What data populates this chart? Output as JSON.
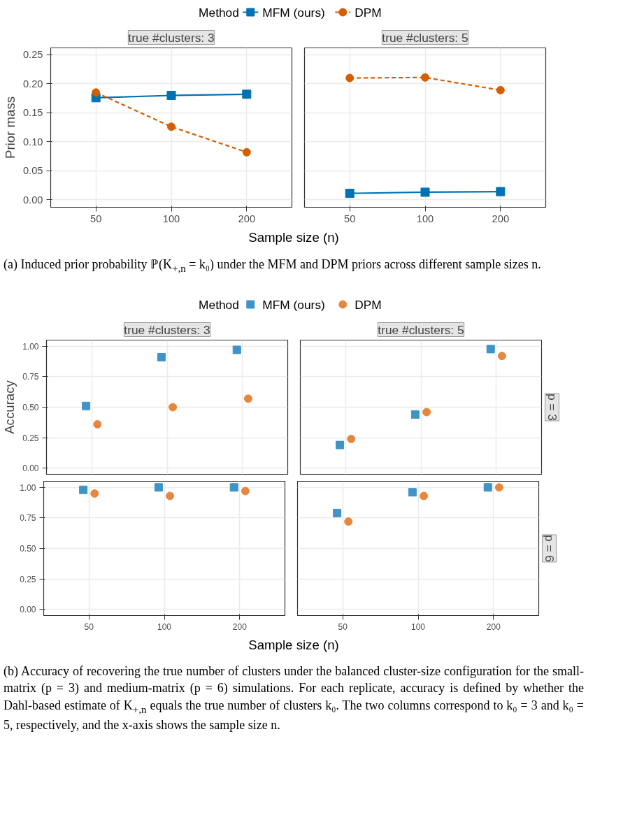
{
  "chart_data": [
    {
      "type": "line",
      "title": "true #clusters: 3",
      "ylabel": "Prior mass",
      "xlabel": "Sample size (n)",
      "legend": "top",
      "legend_title": "Method",
      "categories": [
        "50",
        "100",
        "200"
      ],
      "ylim": [
        -0.013,
        0.262
      ],
      "yticks": [
        {
          "value": 0,
          "label": "0.00"
        },
        {
          "value": 0.05,
          "label": "0.05"
        },
        {
          "value": 0.1,
          "label": "0.10"
        },
        {
          "value": 0.15,
          "label": "0.15"
        },
        {
          "value": 0.2,
          "label": "0.20"
        },
        {
          "value": 0.25,
          "label": "0.25"
        }
      ],
      "grid": true,
      "annotations": [
        "(a) Induced prior probability ℙ(K$_{+,n}$ = k₀) under the MFM and DPM priors across different sample sizes n."
      ],
      "series": [
        {
          "name": "MFM (ours)",
          "color": "#0072b2",
          "marker": "square",
          "line_style": "solid",
          "values": [
            0.176,
            0.18,
            0.182
          ]
        },
        {
          "name": "DPM",
          "color": "#d55e00",
          "marker": "circle",
          "line_style": "dashed",
          "values": [
            0.185,
            0.126,
            0.082
          ]
        }
      ]
    },
    {
      "type": "line",
      "title": "true #clusters: 5",
      "tick_labels": "x",
      "categories": [
        "50",
        "100",
        "200"
      ],
      "ylim": [
        -0.013,
        0.262
      ],
      "yticks": [
        0,
        0.05,
        0.1,
        0.15,
        0.2,
        0.25
      ],
      "grid": true,
      "series": [
        {
          "color": "#0072b2",
          "marker": "square",
          "line_style": "solid",
          "values": [
            0.011,
            0.013,
            0.014
          ]
        },
        {
          "color": "#d55e00",
          "marker": "circle",
          "line_style": "dashed",
          "values": [
            0.21,
            0.211,
            0.189
          ]
        }
      ]
    },
    {
      "type": "scatter",
      "title": "true #clusters: 3",
      "ylabel": "Accuracy",
      "xlabel": "Sample size (n)",
      "legend": "top",
      "legend_title": "Method",
      "tick_labels": "y",
      "categories": [
        "50",
        "100",
        "200"
      ],
      "ylim": [
        -0.05,
        1.05
      ],
      "yticks": [
        {
          "value": 0,
          "label": "0.00"
        },
        {
          "value": 0.25,
          "label": "0.25"
        },
        {
          "value": 0.5,
          "label": "0.50"
        },
        {
          "value": 0.75,
          "label": "0.75"
        },
        {
          "value": 1,
          "label": "1.00"
        }
      ],
      "grid": true,
      "annotations": [
        "(b) Accuracy of recovering the true number of clusters under the balanced cluster-size configuration for the small-matrix (p = 3) and medium-matrix (p = 6) simulations. For each replicate, accuracy is defined by whether the Dahl-based estimate of K$_{+,n}$ equals the true number of clusters k₀. The two columns correspond to k₀ = 3 and k₀ = 5, respectively, and the x-axis shows the sample size n."
      ],
      "series": [
        {
          "name": "MFM (ours)",
          "color": "#3e94c6",
          "marker": "square",
          "values": [
            0.51,
            0.91,
            0.97
          ]
        },
        {
          "name": "DPM",
          "color": "#e6873e",
          "marker": "circle",
          "values": [
            0.36,
            0.5,
            0.57
          ]
        }
      ]
    },
    {
      "type": "scatter",
      "title": "true #clusters: 5",
      "subtitle": "p = 3",
      "tick_labels": false,
      "categories": [
        "50",
        "100",
        "200"
      ],
      "ylim": [
        -0.05,
        1.05
      ],
      "yticks": [
        0,
        0.25,
        0.5,
        0.75,
        1
      ],
      "grid": true,
      "series": [
        {
          "color": "#3e94c6",
          "marker": "square",
          "values": [
            0.19,
            0.44,
            0.976
          ]
        },
        {
          "color": "#e6873e",
          "marker": "circle",
          "values": [
            0.24,
            0.46,
            0.92
          ]
        }
      ]
    },
    {
      "type": "scatter",
      "categories": [
        "50",
        "100",
        "200"
      ],
      "ylim": [
        -0.05,
        1.05
      ],
      "yticks": [
        {
          "value": 0,
          "label": "0.00"
        },
        {
          "value": 0.25,
          "label": "0.25"
        },
        {
          "value": 0.5,
          "label": "0.50"
        },
        {
          "value": 0.75,
          "label": "0.75"
        },
        {
          "value": 1,
          "label": "1.00"
        }
      ],
      "grid": true,
      "series": [
        {
          "color": "#3e94c6",
          "marker": "square",
          "values": [
            0.98,
            1.0,
            1.0
          ]
        },
        {
          "color": "#e6873e",
          "marker": "circle",
          "values": [
            0.95,
            0.93,
            0.97
          ]
        }
      ]
    },
    {
      "type": "scatter",
      "subtitle": "p = 6",
      "tick_labels": "x",
      "categories": [
        "50",
        "100",
        "200"
      ],
      "ylim": [
        -0.05,
        1.05
      ],
      "yticks": [
        0,
        0.25,
        0.5,
        0.75,
        1
      ],
      "grid": true,
      "series": [
        {
          "color": "#3e94c6",
          "marker": "square",
          "values": [
            0.79,
            0.96,
            1.0
          ]
        },
        {
          "color": "#e6873e",
          "marker": "circle",
          "values": [
            0.72,
            0.93,
            1.0
          ]
        }
      ]
    }
  ]
}
